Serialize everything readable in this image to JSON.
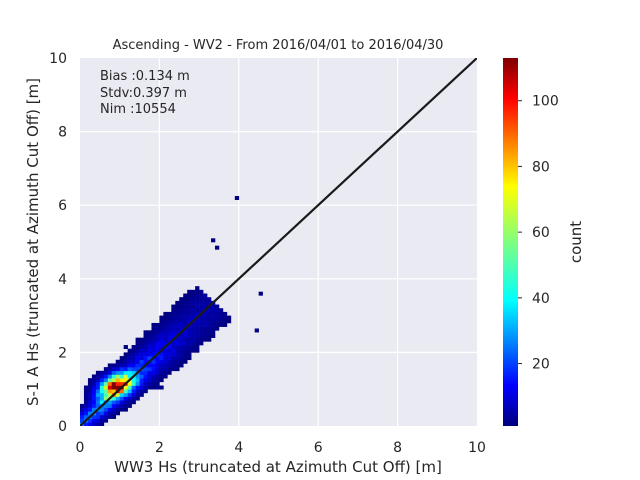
{
  "chart_data": {
    "type": "heatmap",
    "title": "Ascending - WV2 - From 2016/04/01 to 2016/04/30",
    "xlabel": "WW3 Hs (truncated at Azimuth Cut Off) [m]",
    "ylabel": "S-1 A Hs (truncated at Azimuth Cut Off) [m]",
    "xlim": [
      0,
      10
    ],
    "ylim": [
      0,
      10
    ],
    "x_ticks": [
      0,
      2,
      4,
      6,
      8,
      10
    ],
    "y_ticks": [
      0,
      2,
      4,
      6,
      8,
      10
    ],
    "x_tick_labels": [
      "0",
      "2",
      "4",
      "6",
      "8",
      "10"
    ],
    "y_tick_labels": [
      "0",
      "2",
      "4",
      "6",
      "8",
      "10"
    ],
    "grid": true,
    "annotations": [
      "Bias :0.134 m",
      "Stdv:0.397 m",
      "Nim :10554"
    ],
    "reference_line": {
      "from": [
        0,
        0
      ],
      "to": [
        10,
        10
      ],
      "color": "#1a1a1a"
    },
    "colormap": "jet",
    "colorbar": {
      "label": "count",
      "range": [
        1,
        113
      ],
      "ticks": [
        20,
        40,
        60,
        80,
        100
      ],
      "tick_labels": [
        "20",
        "40",
        "60",
        "80",
        "100"
      ]
    },
    "density_peak": {
      "x": 0.9,
      "y": 1.1,
      "count": 113
    },
    "outliers": [
      [
        3.9,
        6.15
      ],
      [
        3.4,
        4.8
      ],
      [
        3.3,
        5.0
      ],
      [
        4.5,
        3.55
      ],
      [
        4.4,
        2.55
      ]
    ]
  }
}
